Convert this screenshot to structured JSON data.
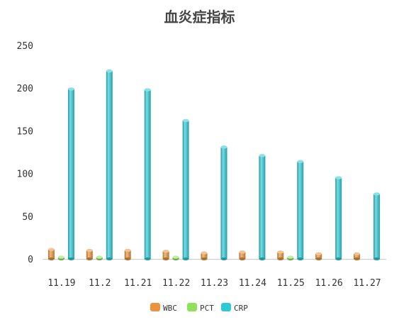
{
  "chart_data": {
    "type": "bar",
    "title": "血炎症指标",
    "categories": [
      "11.19",
      "11.2",
      "11.21",
      "11.22",
      "11.23",
      "11.24",
      "11.25",
      "11.26",
      "11.27"
    ],
    "series": [
      {
        "name": "WBC",
        "color": "#e8943a",
        "values": [
          11,
          10,
          10,
          9,
          7,
          8,
          8,
          6,
          6
        ]
      },
      {
        "name": "PCT",
        "color": "#8fe05a",
        "values": [
          2,
          2,
          0,
          2,
          0,
          0,
          2,
          0,
          0
        ]
      },
      {
        "name": "CRP",
        "color": "#2ec9d6",
        "values": [
          199,
          220,
          198,
          162,
          131,
          121,
          114,
          95,
          76
        ]
      }
    ],
    "ylim": [
      0,
      250
    ],
    "yticks": [
      0,
      50,
      100,
      150,
      200,
      250
    ],
    "legend_position": "bottom",
    "grid": false
  }
}
